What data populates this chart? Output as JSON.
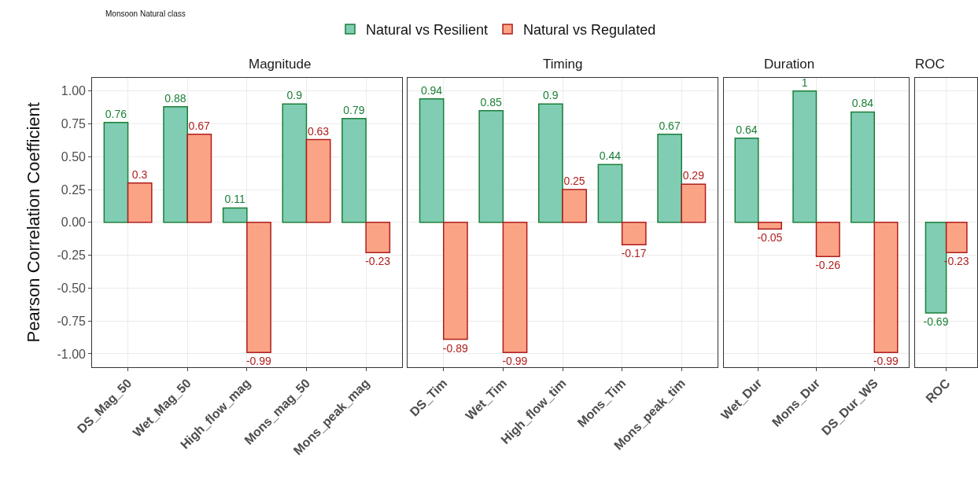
{
  "chart_data": [
    {
      "type": "bar",
      "title": "Magnitude",
      "ylabel": "Pearson Correlation Coefficient",
      "annotations": [
        "Monsoon Natural class"
      ],
      "legend": "top",
      "grid": true,
      "data_labels": true,
      "categories": [
        "DS_Mag_50",
        "Wet_Mag_50",
        "High_flow_mag",
        "Mons_mag_50",
        "Mons_peak_mag"
      ],
      "series": [
        {
          "name": "Natural vs Resilient",
          "color": "#80cdb4",
          "values": [
            0.76,
            0.88,
            0.11,
            0.9,
            0.79
          ]
        },
        {
          "name": "Natural vs Regulated",
          "color": "#fba485",
          "values": [
            0.3,
            0.67,
            -0.99,
            0.63,
            -0.23
          ]
        }
      ],
      "ylim": [
        -1.1,
        1.1
      ],
      "yticks": [
        {
          "value": -1,
          "label": "-1.00"
        },
        {
          "value": -0.75,
          "label": "-0.75"
        },
        {
          "value": -0.5,
          "label": "-0.50"
        },
        {
          "value": -0.25,
          "label": "-0.25"
        },
        {
          "value": 0,
          "label": "0.00"
        },
        {
          "value": 0.25,
          "label": "0.25"
        },
        {
          "value": 0.5,
          "label": "0.50"
        },
        {
          "value": 0.75,
          "label": "0.75"
        },
        {
          "value": 1,
          "label": "1.00"
        }
      ]
    },
    {
      "type": "bar",
      "title": "Timing",
      "grid": true,
      "data_labels": true,
      "tick_labels": "x",
      "categories": [
        "DS_Tim",
        "Wet_Tim",
        "High_flow_tim",
        "Mons_Tim",
        "Mons_peak_tim"
      ],
      "series": [
        {
          "color": "#80cdb4",
          "values": [
            0.94,
            0.85,
            0.9,
            0.44,
            0.67
          ]
        },
        {
          "color": "#fba485",
          "values": [
            -0.89,
            -0.99,
            0.25,
            -0.17,
            0.29
          ]
        }
      ],
      "ylim": [
        -1.1,
        1.1
      ],
      "yticks": [
        -1,
        -0.75,
        -0.5,
        -0.25,
        0,
        0.25,
        0.5,
        0.75,
        1
      ]
    },
    {
      "type": "bar",
      "title": "Duration",
      "grid": true,
      "data_labels": true,
      "tick_labels": "x",
      "categories": [
        "Wet_Dur",
        "Mons_Dur",
        "DS_Dur_WS"
      ],
      "series": [
        {
          "color": "#80cdb4",
          "values": [
            0.64,
            1,
            0.84
          ]
        },
        {
          "color": "#fba485",
          "values": [
            -0.05,
            -0.26,
            -0.99
          ]
        }
      ],
      "ylim": [
        -1.1,
        1.1
      ],
      "yticks": [
        -1,
        -0.75,
        -0.5,
        -0.25,
        0,
        0.25,
        0.5,
        0.75,
        1
      ]
    },
    {
      "type": "bar",
      "title": "ROC",
      "grid": true,
      "data_labels": true,
      "tick_labels": "x",
      "categories": [
        "ROC"
      ],
      "series": [
        {
          "color": "#80cdb4",
          "values": [
            -0.69
          ]
        },
        {
          "color": "#fba485",
          "values": [
            -0.23
          ]
        }
      ],
      "ylim": [
        -1.1,
        1.1
      ],
      "yticks": [
        -1,
        -0.75,
        -0.5,
        -0.25,
        0,
        0.25,
        0.5,
        0.75,
        1
      ]
    }
  ]
}
